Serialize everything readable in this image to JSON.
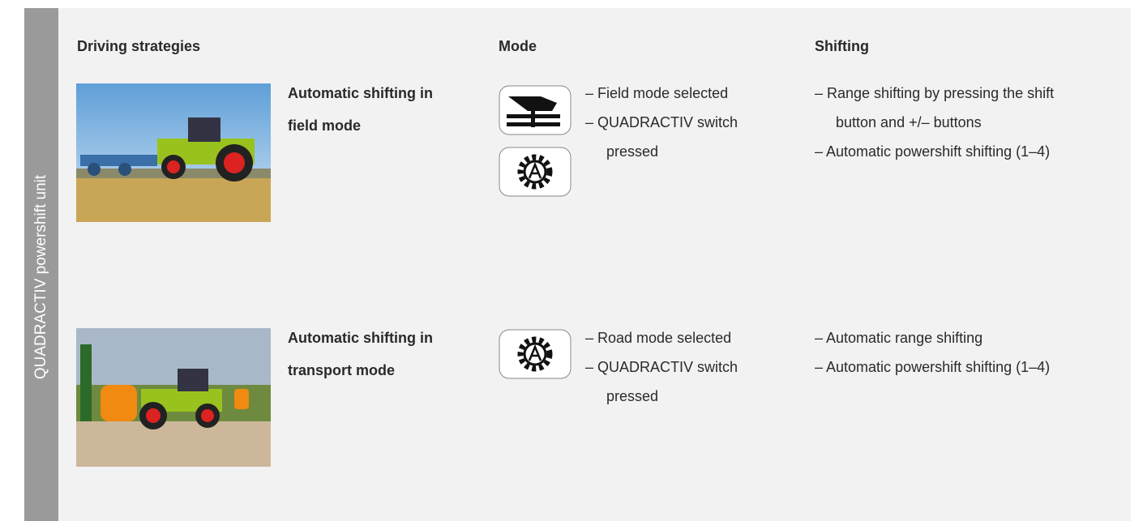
{
  "sidebar_label": "QUADRACTIV powershift unit",
  "headers": [
    "Driving strategies",
    "Mode",
    "Shifting"
  ],
  "rows": [
    {
      "strategy": "Automatic shifting in field mode",
      "mode": [
        "– Field mode selected",
        "– QUADRACTIV switch pressed"
      ],
      "shifting": [
        "– Range shifting by pressing the shift button and +/– buttons",
        "– Automatic powershift shifting (1–4)"
      ]
    },
    {
      "strategy": "Automatic shifting in transport mode",
      "mode": [
        "– Road mode selected",
        "– QUADRACTIV switch pressed"
      ],
      "shifting": [
        "– Automatic range shifting",
        "– Automatic powershift shifting (1–4)"
      ]
    }
  ]
}
